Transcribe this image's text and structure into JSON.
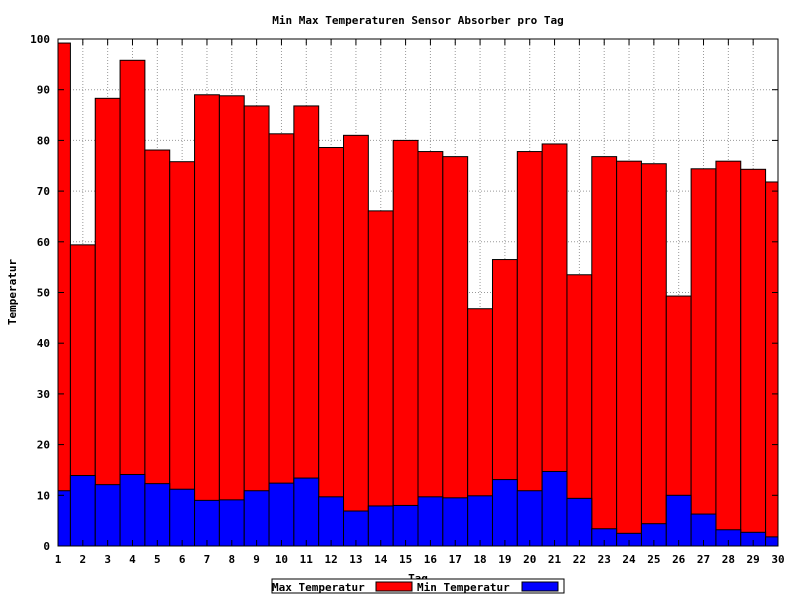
{
  "chart_data": {
    "type": "bar",
    "title": "Min Max Temperaturen Sensor Absorber pro Tag",
    "xlabel": "Tag",
    "ylabel": "Temperatur",
    "ylim": [
      0,
      100
    ],
    "yticks": [
      0,
      10,
      20,
      30,
      40,
      50,
      60,
      70,
      80,
      90,
      100
    ],
    "grid": true,
    "legend_position": "bottom-center",
    "categories": [
      "1",
      "2",
      "3",
      "4",
      "5",
      "6",
      "7",
      "8",
      "9",
      "10",
      "11",
      "12",
      "13",
      "14",
      "15",
      "16",
      "17",
      "18",
      "19",
      "20",
      "21",
      "22",
      "23",
      "24",
      "25",
      "26",
      "27",
      "28",
      "29",
      "30"
    ],
    "series": [
      {
        "name": "Max Temperatur",
        "color": "#ff0000",
        "values": [
          99.2,
          59.4,
          88.3,
          95.8,
          78.1,
          75.8,
          89.0,
          88.8,
          86.8,
          81.3,
          86.8,
          78.6,
          81.0,
          66.1,
          80.0,
          77.8,
          76.8,
          46.8,
          56.5,
          77.8,
          79.3,
          53.5,
          76.8,
          75.9,
          75.4,
          49.3,
          74.4,
          75.9,
          74.3,
          71.8
        ]
      },
      {
        "name": "Min Temperatur",
        "color": "#0000ff",
        "values": [
          10.9,
          13.9,
          12.1,
          14.1,
          12.3,
          11.2,
          9.0,
          9.1,
          10.9,
          12.4,
          13.4,
          9.7,
          6.9,
          7.9,
          8.0,
          9.7,
          9.5,
          9.9,
          13.1,
          10.9,
          14.7,
          9.4,
          3.4,
          2.5,
          4.4,
          10.0,
          6.3,
          3.2,
          2.7,
          1.8
        ]
      }
    ]
  }
}
